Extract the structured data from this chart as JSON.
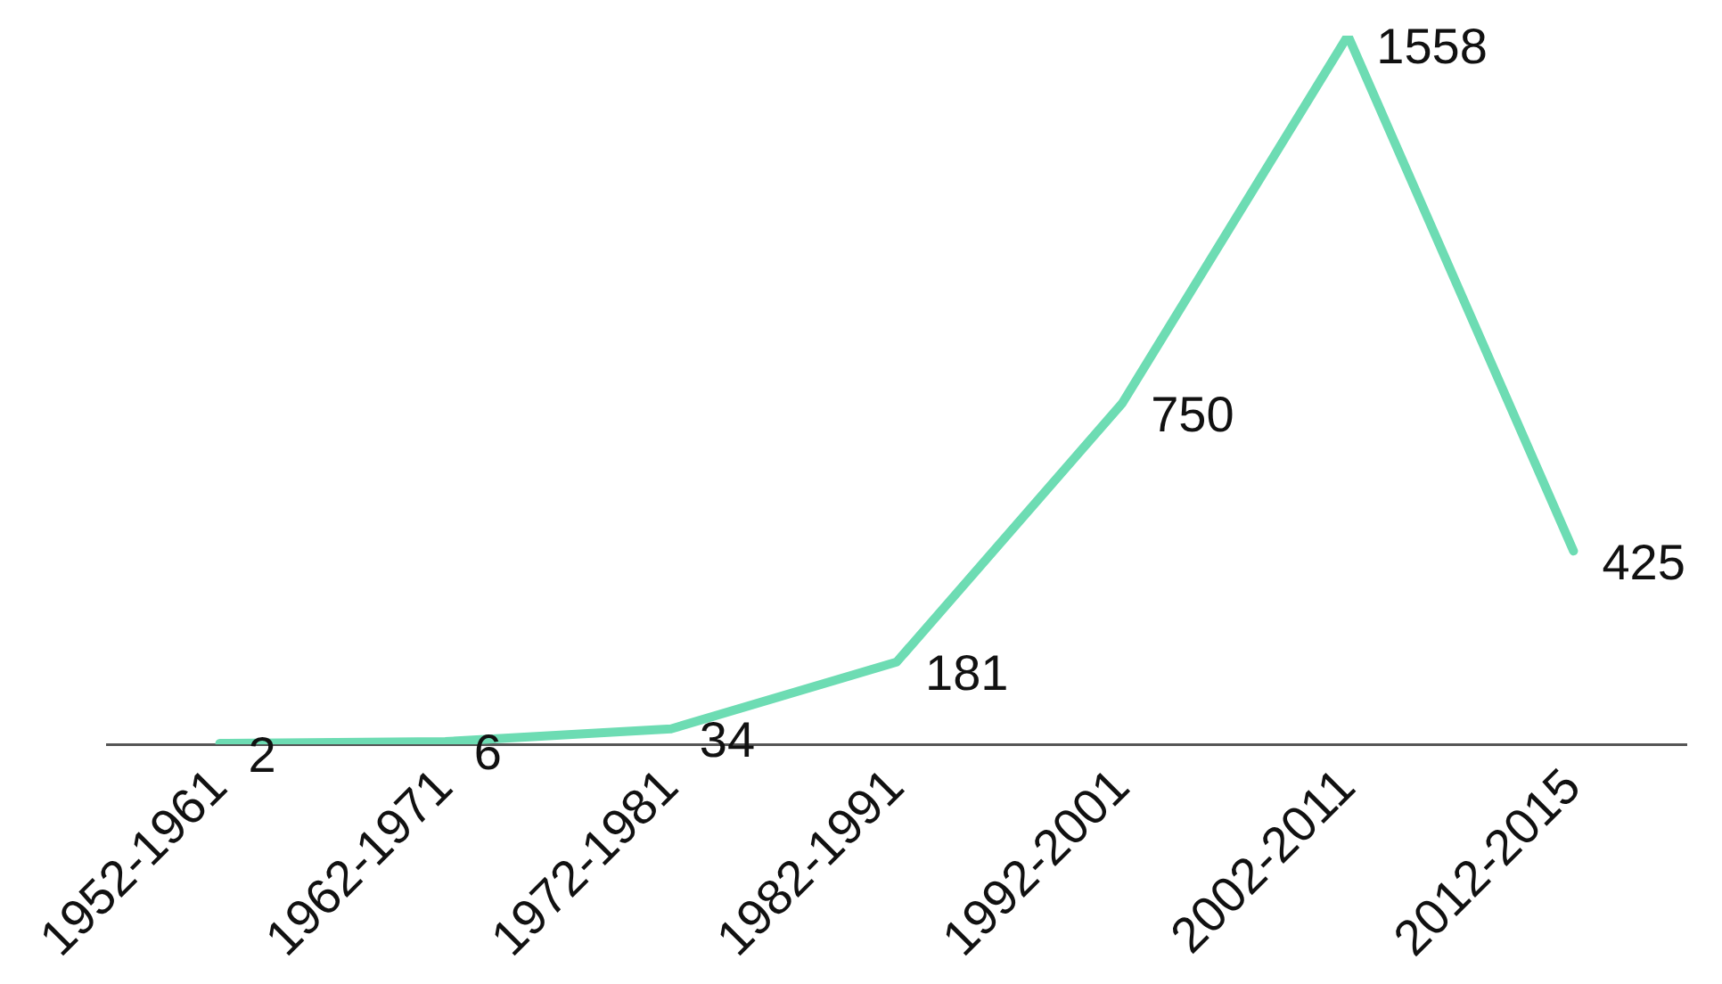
{
  "chart_data": {
    "type": "line",
    "categories": [
      "1952-1961",
      "1962-1971",
      "1972-1981",
      "1982-1991",
      "1992-2001",
      "2002-2011",
      "2012-2015"
    ],
    "series": [
      {
        "color": "#6ddcb3",
        "values": [
          2,
          6,
          34,
          181,
          750,
          1558,
          425
        ]
      }
    ],
    "data_labels": true,
    "grid": false,
    "legend": false,
    "marker": "none",
    "line_style": "solid",
    "tick_labels": "x"
  }
}
